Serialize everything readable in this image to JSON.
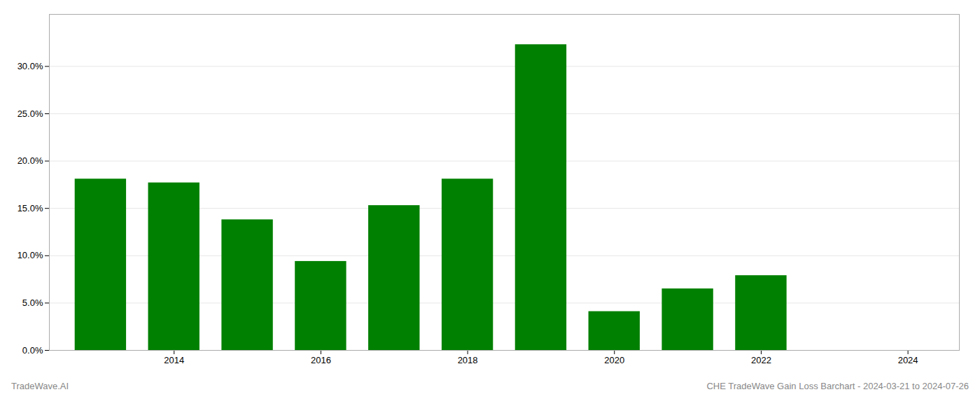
{
  "chart_data": {
    "type": "bar",
    "title": "CHE TradeWave Gain Loss Barchart - 2024-03-21 to 2024-07-26",
    "annotations": [
      "TradeWave.AI"
    ],
    "x": [
      2013,
      2014,
      2015,
      2016,
      2017,
      2018,
      2019,
      2020,
      2021,
      2022,
      2023
    ],
    "values": [
      0.181,
      0.177,
      0.138,
      0.094,
      0.153,
      0.181,
      0.323,
      0.041,
      0.065,
      0.079,
      0.0
    ],
    "color": "#008000",
    "xlim": [
      2012.3,
      2024.7
    ],
    "xticks": [
      2014,
      2016,
      2018,
      2020,
      2022,
      2024
    ],
    "ylim": [
      0,
      0.355
    ],
    "yticks": [
      {
        "value": 0.0,
        "label": "0.0%"
      },
      {
        "value": 0.05,
        "label": "5.0%"
      },
      {
        "value": 0.1,
        "label": "10.0%"
      },
      {
        "value": 0.15,
        "label": "15.0%"
      },
      {
        "value": 0.2,
        "label": "20.0%"
      },
      {
        "value": 0.25,
        "label": "25.0%"
      },
      {
        "value": 0.3,
        "label": "30.0%"
      }
    ],
    "grid": true
  }
}
